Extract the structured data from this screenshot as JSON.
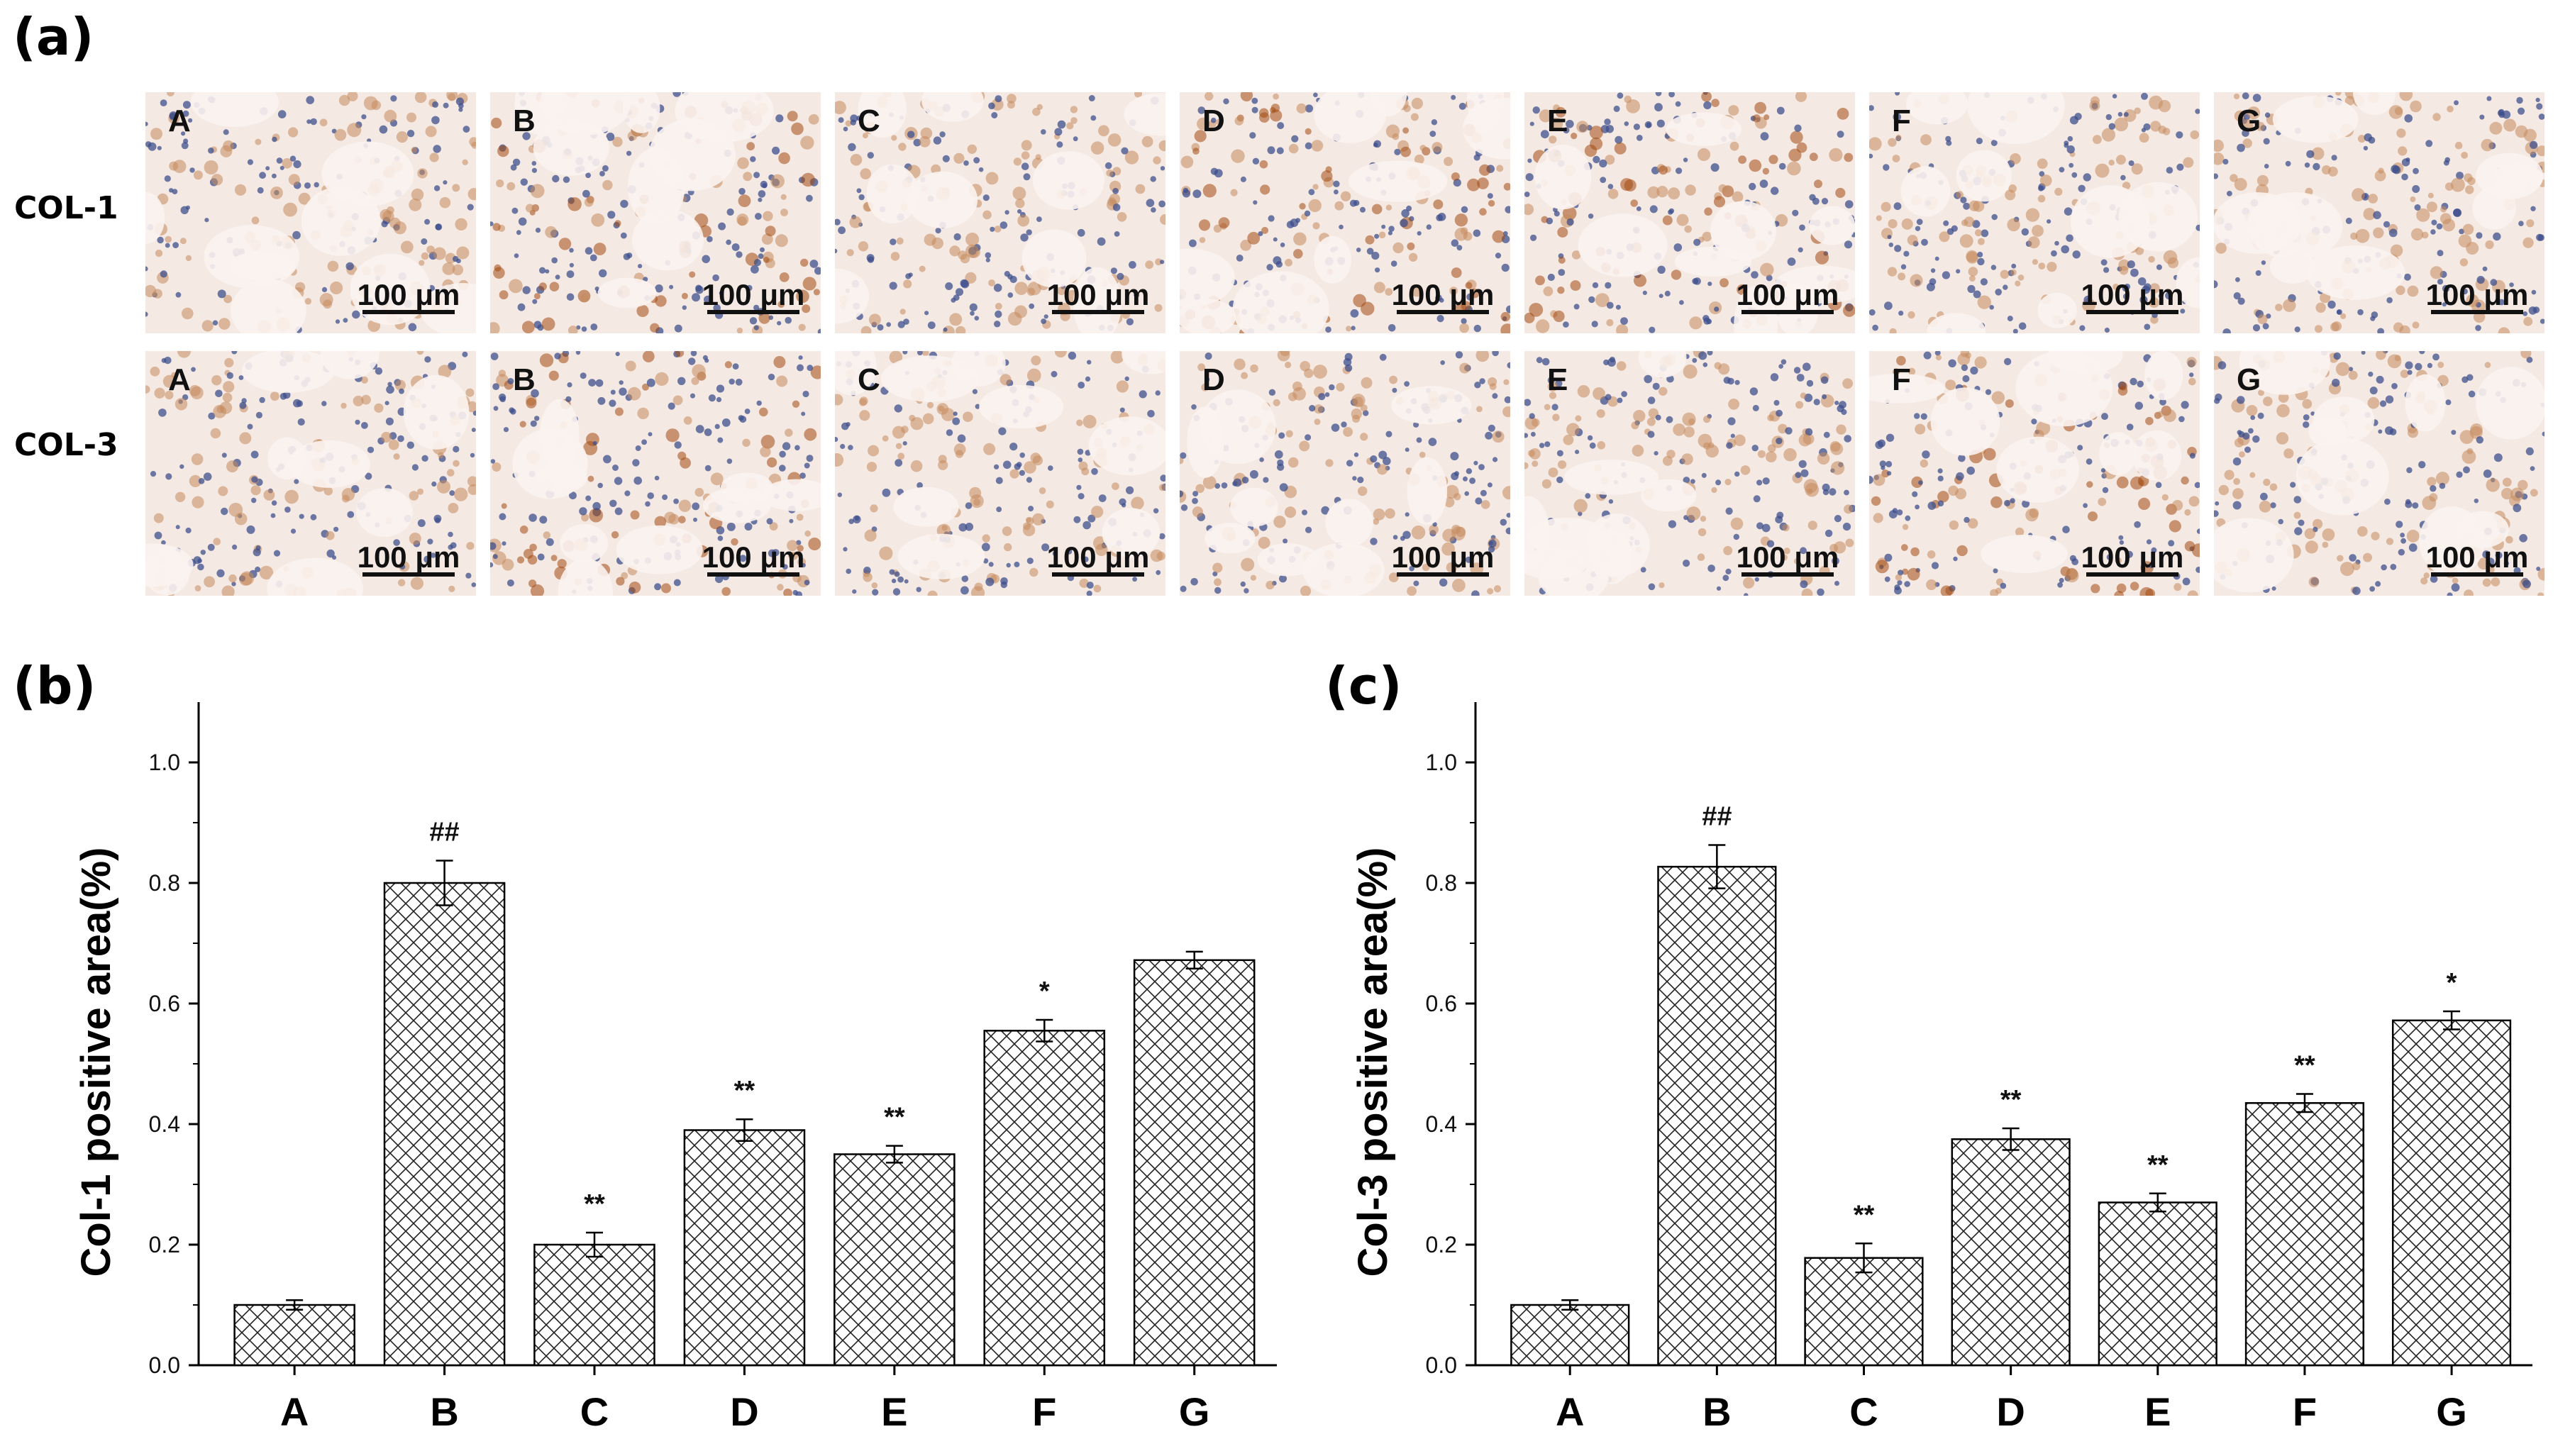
{
  "figure": {
    "panel_labels": [
      "(a)",
      "(b)",
      "(c)"
    ],
    "row_labels": [
      "COL-1",
      "COL-3"
    ],
    "micrograph_letters": [
      "A",
      "B",
      "C",
      "D",
      "E",
      "F",
      "G"
    ],
    "scale_bar_text": "100 μm"
  },
  "micrograph_colors": {
    "background": "#f5e9e3",
    "nuclei": "#3d4f8c",
    "stain_light": "#c48a5c",
    "stain_dark": "#a24a12"
  },
  "chart_data": [
    {
      "type": "bar",
      "title": "",
      "xlabel": "",
      "ylabel": "Col-1 positive area(%)",
      "ylim": [
        0,
        1.1
      ],
      "yticks": [
        "0.0",
        "0.2",
        "0.4",
        "0.6",
        "0.8",
        "1.0"
      ],
      "categories": [
        "A",
        "B",
        "C",
        "D",
        "E",
        "F",
        "G"
      ],
      "values": [
        0.1,
        0.8,
        0.2,
        0.39,
        0.35,
        0.555,
        0.672
      ],
      "errors": [
        0.008,
        0.037,
        0.02,
        0.018,
        0.014,
        0.018,
        0.014
      ],
      "annotations": [
        "",
        "##",
        "**",
        "**",
        "**",
        "*",
        ""
      ],
      "pattern": "crosshatch",
      "grid": false,
      "legend": "none"
    },
    {
      "type": "bar",
      "title": "",
      "xlabel": "",
      "ylabel": "Col-3 positive area(%)",
      "ylim": [
        0,
        1.1
      ],
      "yticks": [
        "0.0",
        "0.2",
        "0.4",
        "0.6",
        "0.8",
        "1.0"
      ],
      "categories": [
        "A",
        "B",
        "C",
        "D",
        "E",
        "F",
        "G"
      ],
      "values": [
        0.1,
        0.827,
        0.178,
        0.375,
        0.27,
        0.435,
        0.572
      ],
      "errors": [
        0.008,
        0.036,
        0.024,
        0.018,
        0.015,
        0.015,
        0.015
      ],
      "annotations": [
        "",
        "##",
        "**",
        "**",
        "**",
        "**",
        "*"
      ],
      "pattern": "crosshatch",
      "grid": false,
      "legend": "none"
    }
  ]
}
